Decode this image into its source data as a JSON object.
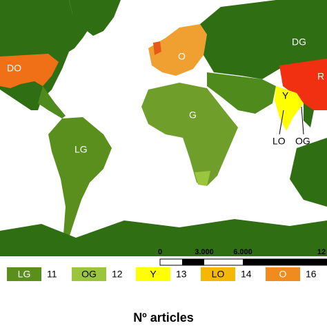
{
  "map": {
    "labels": [
      "DO",
      "O",
      "DG",
      "R",
      "G",
      "Y",
      "LO",
      "OG",
      "LG"
    ],
    "scale_bar": [
      "0",
      "3.000",
      "6.000",
      "12"
    ]
  },
  "legend": {
    "items": [
      {
        "code": "LG",
        "count": 11
      },
      {
        "code": "OG",
        "count": 12
      },
      {
        "code": "Y",
        "count": 13
      },
      {
        "code": "LO",
        "count": 14
      },
      {
        "code": "O",
        "count": 16
      }
    ],
    "title": "Nº articles"
  }
}
